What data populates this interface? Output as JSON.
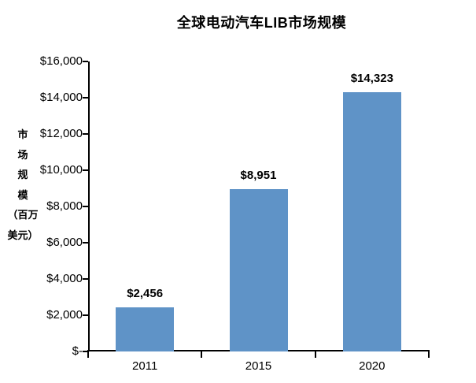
{
  "colors": {
    "bar": "#5F93C7",
    "axis": "#000000",
    "text": "#000000",
    "background": "#FFFFFF"
  },
  "chart_data": {
    "type": "bar",
    "title": "全球电动汽车LIB市场规模",
    "categories": [
      "2011",
      "2015",
      "2020"
    ],
    "values": [
      2456,
      8951,
      14323
    ],
    "bar_labels": [
      "$2,456",
      "$8,951",
      "$14,323"
    ],
    "xlabel": "",
    "ylabel": "市场规模（百万美元）",
    "ylabel_lines": [
      "市",
      "场",
      "规",
      "模",
      "（百万",
      "美元）"
    ],
    "ylim": [
      0,
      16000
    ],
    "yticks": [
      {
        "value": 16000,
        "label": "$16,000"
      },
      {
        "value": 14000,
        "label": "$14,000"
      },
      {
        "value": 12000,
        "label": "$12,000"
      },
      {
        "value": 10000,
        "label": "$10,000"
      },
      {
        "value": 8000,
        "label": "$8,000"
      },
      {
        "value": 6000,
        "label": "$6,000"
      },
      {
        "value": 4000,
        "label": "$4,000"
      },
      {
        "value": 2000,
        "label": "$2,000"
      },
      {
        "value": 0,
        "label": "$-"
      }
    ],
    "grid": false,
    "legend": null
  }
}
